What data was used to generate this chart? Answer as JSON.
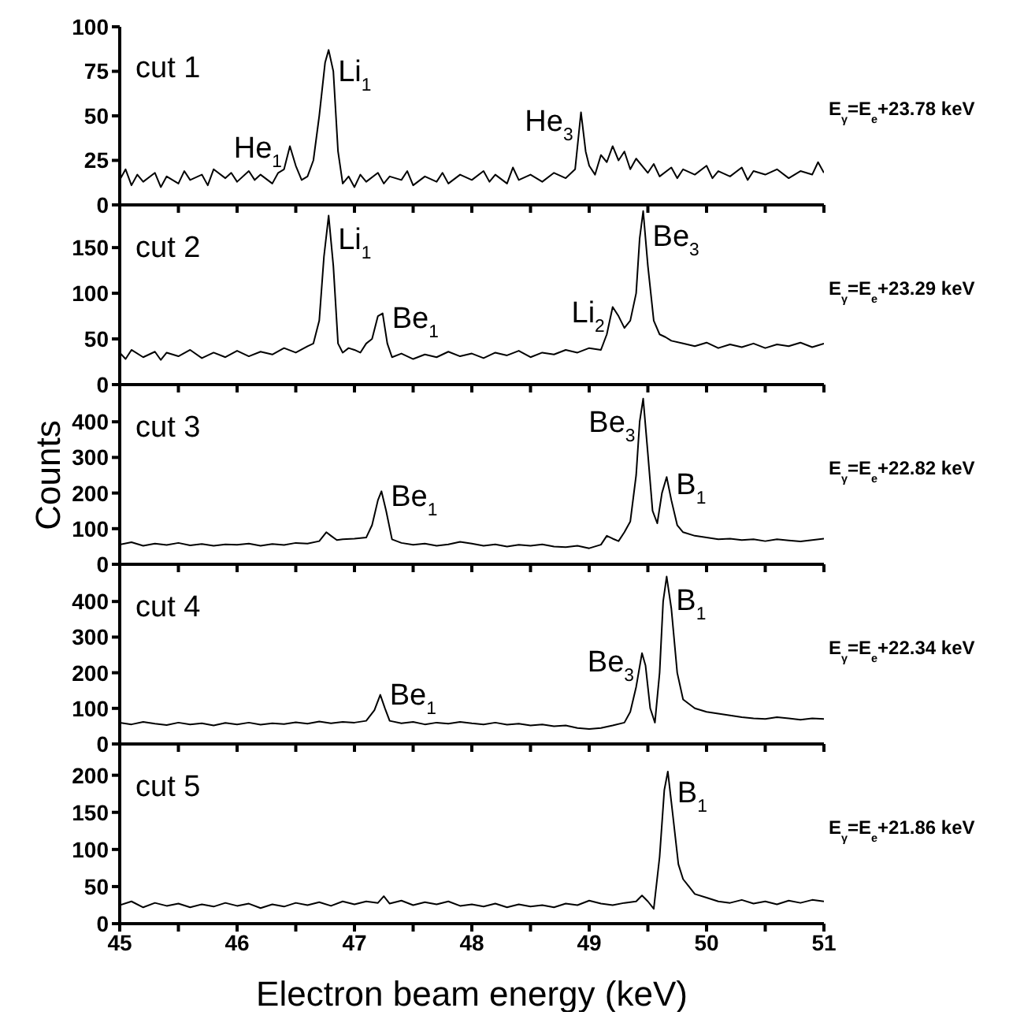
{
  "chart_data": [
    {
      "type": "line",
      "color": "#000000",
      "marker": "none",
      "line_style": "solid",
      "grid": false,
      "tick_labels": "y",
      "xlim": [
        45,
        51
      ],
      "xticks": [
        45,
        {
          "value": 45.5,
          "label": null
        },
        46,
        {
          "value": 46.5,
          "label": null
        },
        47,
        {
          "value": 47.5,
          "label": null
        },
        48,
        {
          "value": 48.5,
          "label": null
        },
        49,
        {
          "value": 49.5,
          "label": null
        },
        50,
        {
          "value": 50.5,
          "label": null
        },
        51
      ],
      "ylim": [
        0,
        100
      ],
      "yticks": [
        0,
        25,
        50,
        75,
        100
      ],
      "x": [
        45.0,
        45.05,
        45.1,
        45.15,
        45.2,
        45.3,
        45.35,
        45.4,
        45.5,
        45.55,
        45.6,
        45.7,
        45.75,
        45.8,
        45.9,
        45.95,
        46.0,
        46.1,
        46.15,
        46.2,
        46.3,
        46.35,
        46.4,
        46.45,
        46.5,
        46.55,
        46.6,
        46.65,
        46.7,
        46.75,
        46.78,
        46.82,
        46.86,
        46.9,
        46.95,
        47.0,
        47.05,
        47.1,
        47.2,
        47.25,
        47.3,
        47.4,
        47.45,
        47.5,
        47.6,
        47.7,
        47.75,
        47.8,
        47.9,
        48.0,
        48.1,
        48.15,
        48.2,
        48.3,
        48.35,
        48.4,
        48.5,
        48.6,
        48.7,
        48.8,
        48.88,
        48.93,
        48.97,
        49.0,
        49.05,
        49.1,
        49.15,
        49.2,
        49.25,
        49.3,
        49.35,
        49.4,
        49.5,
        49.55,
        49.6,
        49.7,
        49.75,
        49.8,
        49.9,
        50.0,
        50.05,
        50.1,
        50.2,
        50.3,
        50.35,
        50.4,
        50.5,
        50.6,
        50.7,
        50.8,
        50.9,
        50.95,
        51.0
      ],
      "values": [
        14,
        20,
        11,
        17,
        13,
        18,
        10,
        16,
        12,
        19,
        14,
        17,
        11,
        20,
        15,
        18,
        13,
        19,
        14,
        17,
        12,
        18,
        20,
        33,
        22,
        14,
        16,
        25,
        50,
        80,
        87,
        75,
        30,
        12,
        16,
        10,
        17,
        13,
        18,
        12,
        16,
        14,
        19,
        11,
        16,
        13,
        18,
        12,
        17,
        14,
        19,
        13,
        17,
        12,
        21,
        14,
        17,
        13,
        18,
        15,
        20,
        52,
        30,
        22,
        17,
        28,
        24,
        33,
        25,
        30,
        20,
        26,
        18,
        23,
        16,
        21,
        15,
        20,
        17,
        22,
        15,
        19,
        16,
        21,
        14,
        19,
        17,
        20,
        15,
        19,
        17,
        24,
        18
      ],
      "annotations": [
        "cut 1",
        "E$_{γ}$=E$_{e}$+23.78 keV",
        {
          "text": "He$_{1}$",
          "x": 46.45,
          "y": 33
        },
        {
          "text": "Li$_{1}$",
          "x": 46.78,
          "y": 87
        },
        {
          "text": "He$_{3}$",
          "x": 48.93,
          "y": 52
        }
      ]
    },
    {
      "type": "line",
      "color": "#000000",
      "marker": "none",
      "line_style": "solid",
      "grid": false,
      "tick_labels": "y",
      "xlim": [
        45,
        51
      ],
      "xticks": [
        45,
        {
          "value": 45.5,
          "label": null
        },
        46,
        {
          "value": 46.5,
          "label": null
        },
        47,
        {
          "value": 47.5,
          "label": null
        },
        48,
        {
          "value": 48.5,
          "label": null
        },
        49,
        {
          "value": 49.5,
          "label": null
        },
        50,
        {
          "value": 50.5,
          "label": null
        },
        51
      ],
      "ylim": [
        0,
        195
      ],
      "yticks": [
        0,
        50,
        100,
        150
      ],
      "x": [
        45.0,
        45.05,
        45.1,
        45.2,
        45.3,
        45.35,
        45.4,
        45.5,
        45.6,
        45.7,
        45.8,
        45.9,
        46.0,
        46.1,
        46.2,
        46.3,
        46.4,
        46.5,
        46.6,
        46.65,
        46.7,
        46.74,
        46.78,
        46.82,
        46.86,
        46.9,
        46.95,
        47.0,
        47.05,
        47.1,
        47.15,
        47.2,
        47.24,
        47.28,
        47.32,
        47.4,
        47.5,
        47.6,
        47.7,
        47.8,
        47.9,
        48.0,
        48.1,
        48.2,
        48.3,
        48.4,
        48.5,
        48.6,
        48.7,
        48.8,
        48.9,
        49.0,
        49.1,
        49.15,
        49.2,
        49.25,
        49.3,
        49.35,
        49.4,
        49.43,
        49.46,
        49.5,
        49.55,
        49.6,
        49.65,
        49.7,
        49.8,
        49.9,
        50.0,
        50.1,
        50.2,
        50.3,
        50.4,
        50.5,
        50.6,
        50.7,
        50.8,
        50.9,
        51.0
      ],
      "values": [
        35,
        28,
        38,
        30,
        36,
        27,
        35,
        31,
        38,
        29,
        35,
        30,
        37,
        31,
        36,
        33,
        40,
        35,
        42,
        45,
        70,
        140,
        185,
        130,
        45,
        35,
        40,
        38,
        35,
        45,
        50,
        75,
        78,
        45,
        30,
        34,
        28,
        33,
        30,
        36,
        31,
        34,
        29,
        35,
        32,
        37,
        30,
        35,
        33,
        38,
        35,
        40,
        38,
        55,
        85,
        75,
        62,
        70,
        100,
        160,
        190,
        130,
        70,
        55,
        52,
        48,
        45,
        42,
        46,
        40,
        44,
        41,
        45,
        40,
        44,
        42,
        46,
        41,
        45
      ],
      "annotations": [
        "cut 2",
        "E$_{γ}$=E$_{e}$+23.29 keV",
        {
          "text": "Li$_{1}$",
          "x": 46.78,
          "y": 185
        },
        {
          "text": "Be$_{1}$",
          "x": 47.24,
          "y": 78
        },
        {
          "text": "Li$_{2}$",
          "x": 49.2,
          "y": 85
        },
        {
          "text": "Be$_{3}$",
          "x": 49.46,
          "y": 190
        }
      ]
    },
    {
      "type": "line",
      "color": "#000000",
      "marker": "none",
      "line_style": "solid",
      "grid": false,
      "tick_labels": "y",
      "ylabel": "Counts",
      "xlim": [
        45,
        51
      ],
      "xticks": [
        45,
        {
          "value": 45.5,
          "label": null
        },
        46,
        {
          "value": 46.5,
          "label": null
        },
        47,
        {
          "value": 47.5,
          "label": null
        },
        48,
        {
          "value": 48.5,
          "label": null
        },
        49,
        {
          "value": 49.5,
          "label": null
        },
        50,
        {
          "value": 50.5,
          "label": null
        },
        51
      ],
      "ylim": [
        0,
        500
      ],
      "yticks": [
        0,
        100,
        200,
        300,
        400
      ],
      "x": [
        45.0,
        45.1,
        45.2,
        45.3,
        45.4,
        45.5,
        45.6,
        45.7,
        45.8,
        45.9,
        46.0,
        46.1,
        46.2,
        46.3,
        46.4,
        46.5,
        46.6,
        46.7,
        46.76,
        46.8,
        46.85,
        46.9,
        47.0,
        47.1,
        47.15,
        47.2,
        47.23,
        47.27,
        47.32,
        47.4,
        47.5,
        47.6,
        47.7,
        47.8,
        47.9,
        48.0,
        48.1,
        48.2,
        48.3,
        48.4,
        48.5,
        48.6,
        48.7,
        48.8,
        48.9,
        49.0,
        49.1,
        49.15,
        49.2,
        49.25,
        49.3,
        49.35,
        49.4,
        49.43,
        49.46,
        49.5,
        49.54,
        49.58,
        49.62,
        49.66,
        49.7,
        49.75,
        49.8,
        49.9,
        50.0,
        50.1,
        50.2,
        50.3,
        50.4,
        50.5,
        50.6,
        50.7,
        50.8,
        50.9,
        51.0
      ],
      "values": [
        55,
        62,
        52,
        58,
        54,
        60,
        53,
        57,
        52,
        56,
        55,
        58,
        52,
        57,
        54,
        60,
        58,
        65,
        90,
        80,
        68,
        70,
        72,
        75,
        110,
        180,
        205,
        150,
        70,
        60,
        55,
        58,
        52,
        56,
        63,
        58,
        52,
        56,
        50,
        55,
        52,
        56,
        50,
        48,
        52,
        45,
        55,
        80,
        72,
        65,
        90,
        120,
        250,
        400,
        465,
        310,
        150,
        115,
        200,
        245,
        180,
        110,
        90,
        80,
        75,
        70,
        72,
        68,
        70,
        65,
        70,
        67,
        64,
        68,
        72
      ],
      "annotations": [
        "cut 3",
        "E$_{γ}$=E$_{e}$+22.82 keV",
        {
          "text": "Be$_{1}$",
          "x": 47.23,
          "y": 205
        },
        {
          "text": "Be$_{3}$",
          "x": 49.46,
          "y": 465
        },
        {
          "text": "B$_{1}$",
          "x": 49.66,
          "y": 245
        }
      ]
    },
    {
      "type": "line",
      "color": "#000000",
      "marker": "none",
      "line_style": "solid",
      "grid": false,
      "tick_labels": "y",
      "xlim": [
        45,
        51
      ],
      "xticks": [
        45,
        {
          "value": 45.5,
          "label": null
        },
        46,
        {
          "value": 46.5,
          "label": null
        },
        47,
        {
          "value": 47.5,
          "label": null
        },
        48,
        {
          "value": 48.5,
          "label": null
        },
        49,
        {
          "value": 49.5,
          "label": null
        },
        50,
        {
          "value": 50.5,
          "label": null
        },
        51
      ],
      "ylim": [
        0,
        500
      ],
      "yticks": [
        0,
        100,
        200,
        300,
        400
      ],
      "x": [
        45.0,
        45.1,
        45.2,
        45.3,
        45.4,
        45.5,
        45.6,
        45.7,
        45.8,
        45.9,
        46.0,
        46.1,
        46.2,
        46.3,
        46.4,
        46.5,
        46.6,
        46.7,
        46.8,
        46.9,
        47.0,
        47.1,
        47.17,
        47.22,
        47.26,
        47.3,
        47.4,
        47.5,
        47.6,
        47.7,
        47.8,
        47.9,
        48.0,
        48.1,
        48.2,
        48.3,
        48.4,
        48.5,
        48.6,
        48.7,
        48.8,
        48.9,
        49.0,
        49.1,
        49.2,
        49.3,
        49.35,
        49.4,
        49.45,
        49.48,
        49.52,
        49.56,
        49.6,
        49.63,
        49.66,
        49.7,
        49.75,
        49.8,
        49.9,
        50.0,
        50.1,
        50.2,
        50.3,
        50.4,
        50.5,
        50.6,
        50.7,
        50.8,
        50.9,
        51.0
      ],
      "values": [
        60,
        55,
        62,
        57,
        53,
        60,
        55,
        58,
        52,
        59,
        55,
        60,
        54,
        58,
        56,
        61,
        57,
        63,
        58,
        62,
        60,
        65,
        95,
        138,
        100,
        65,
        58,
        62,
        55,
        60,
        57,
        62,
        58,
        55,
        60,
        54,
        57,
        52,
        55,
        50,
        52,
        45,
        42,
        45,
        52,
        60,
        90,
        160,
        255,
        220,
        100,
        60,
        200,
        400,
        470,
        380,
        200,
        125,
        100,
        90,
        85,
        80,
        75,
        72,
        70,
        75,
        72,
        68,
        72,
        70
      ],
      "annotations": [
        "cut 4",
        "E$_{γ}$=E$_{e}$+22.34 keV",
        {
          "text": "Be$_{1}$",
          "x": 47.22,
          "y": 138
        },
        {
          "text": "Be$_{3}$",
          "x": 49.45,
          "y": 255
        },
        {
          "text": "B$_{1}$",
          "x": 49.66,
          "y": 470
        }
      ]
    },
    {
      "type": "line",
      "color": "#000000",
      "marker": "none",
      "line_style": "solid",
      "grid": false,
      "xlabel": "Electron beam energy (keV)",
      "xlim": [
        45,
        51
      ],
      "xticks": [
        45,
        {
          "value": 45.5,
          "label": null
        },
        46,
        {
          "value": 46.5,
          "label": null
        },
        47,
        {
          "value": 47.5,
          "label": null
        },
        48,
        {
          "value": 48.5,
          "label": null
        },
        49,
        {
          "value": 49.5,
          "label": null
        },
        50,
        {
          "value": 50.5,
          "label": null
        },
        51
      ],
      "ylim": [
        0,
        240
      ],
      "yticks": [
        0,
        50,
        100,
        150,
        200
      ],
      "x": [
        45.0,
        45.1,
        45.2,
        45.3,
        45.4,
        45.5,
        45.6,
        45.7,
        45.8,
        45.9,
        46.0,
        46.1,
        46.2,
        46.3,
        46.4,
        46.5,
        46.6,
        46.7,
        46.8,
        46.9,
        47.0,
        47.1,
        47.2,
        47.25,
        47.3,
        47.4,
        47.5,
        47.6,
        47.7,
        47.8,
        47.9,
        48.0,
        48.1,
        48.2,
        48.3,
        48.4,
        48.5,
        48.6,
        48.7,
        48.8,
        48.9,
        49.0,
        49.1,
        49.2,
        49.3,
        49.4,
        49.45,
        49.5,
        49.55,
        49.6,
        49.64,
        49.67,
        49.71,
        49.76,
        49.8,
        49.85,
        49.9,
        50.0,
        50.1,
        50.2,
        50.3,
        50.4,
        50.5,
        50.6,
        50.7,
        50.8,
        50.9,
        51.0
      ],
      "values": [
        25,
        30,
        22,
        28,
        24,
        27,
        22,
        26,
        23,
        28,
        24,
        27,
        21,
        26,
        23,
        28,
        25,
        29,
        24,
        30,
        26,
        30,
        28,
        37,
        27,
        31,
        25,
        29,
        26,
        30,
        24,
        26,
        23,
        27,
        22,
        26,
        23,
        25,
        22,
        27,
        25,
        31,
        27,
        25,
        28,
        30,
        38,
        30,
        20,
        90,
        180,
        205,
        150,
        80,
        60,
        50,
        40,
        35,
        30,
        28,
        32,
        27,
        30,
        26,
        31,
        28,
        32,
        30
      ],
      "annotations": [
        "cut 5",
        "E$_{γ}$=E$_{e}$+21.86 keV",
        {
          "text": "B$_{1}$",
          "x": 49.67,
          "y": 205
        }
      ]
    }
  ]
}
